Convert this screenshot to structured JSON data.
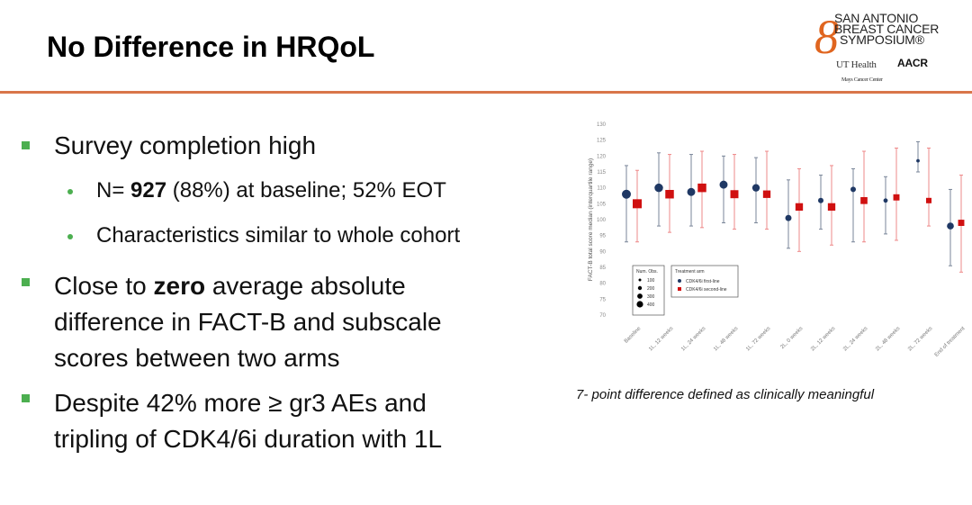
{
  "title": "No Difference in HRQoL",
  "logo": {
    "line1": "SAN ANTONIO",
    "line2": "BREAST CANCER",
    "line3": "SYMPOSIUM®",
    "ut": "UT Health",
    "ut_sub": "Mays Cancer Center",
    "aacr": "AACR"
  },
  "bullets": [
    {
      "text": "Survey completion high"
    },
    {
      "pre": "N= ",
      "bold": "927",
      "post": " (88%) at baseline; 52% EOT"
    },
    {
      "text": "Characteristics similar to whole cohort"
    },
    {
      "pre": "Close to ",
      "bold": "zero",
      "post": " average absolute",
      "line2": "difference in FACT-B and subscale",
      "line3": "scores between two arms"
    },
    {
      "text": "Despite 42% more ≥ gr3 AEs and",
      "line2": "tripling of CDK4/6i duration with 1L"
    }
  ],
  "caption": "7- point difference defined as clinically meaningful",
  "chart_data": {
    "type": "scatter",
    "ylabel": "FACT-B total score median (interquartile range)",
    "ylim": [
      70,
      130
    ],
    "yticks": [
      70,
      75,
      80,
      85,
      90,
      95,
      100,
      105,
      110,
      115,
      120,
      125,
      130
    ],
    "categories": [
      "Baseline",
      "1L, 12 weeks",
      "1L, 24 weeks",
      "1L, 48 weeks",
      "1L, 72 weeks",
      "2L, 0 weeks",
      "2L, 12 weeks",
      "2L, 24 weeks",
      "2L, 48 weeks",
      "2L, 72 weeks",
      "End of treatment"
    ],
    "series": [
      {
        "name": "CDK4/6i first-line",
        "color": "#1f3864",
        "marker": "circle",
        "median": [
          108,
          110,
          108.7,
          111,
          110,
          100.5,
          106,
          109.5,
          106,
          118.5,
          98
        ],
        "q1": [
          93,
          98,
          98,
          99,
          99,
          91,
          97,
          93,
          95.5,
          115,
          85.5
        ],
        "q3": [
          117,
          121,
          120.5,
          120,
          119.5,
          112.5,
          114,
          116,
          113.5,
          124.5,
          109.5
        ],
        "nobs": [
          400,
          350,
          300,
          300,
          250,
          150,
          100,
          100,
          50,
          20,
          200
        ]
      },
      {
        "name": "CDK4/6i second-line",
        "color": "#d01010",
        "marker": "square",
        "median": [
          105,
          108,
          110,
          108,
          108,
          104,
          104,
          106,
          107,
          106,
          99
        ],
        "q1": [
          93,
          96,
          97.5,
          97,
          97,
          90,
          92,
          93,
          93.5,
          98,
          83.5
        ],
        "q3": [
          115.5,
          120.5,
          121.5,
          120.5,
          121.5,
          116,
          117,
          121.5,
          122.5,
          122.5,
          114
        ],
        "nobs": [
          400,
          350,
          350,
          300,
          250,
          250,
          250,
          200,
          150,
          100,
          150
        ]
      }
    ],
    "legend_size": {
      "title": "Num. Obs.",
      "values": [
        "100",
        "200",
        "300",
        "400"
      ]
    },
    "legend_arm": {
      "title": "Treatment arm"
    }
  }
}
